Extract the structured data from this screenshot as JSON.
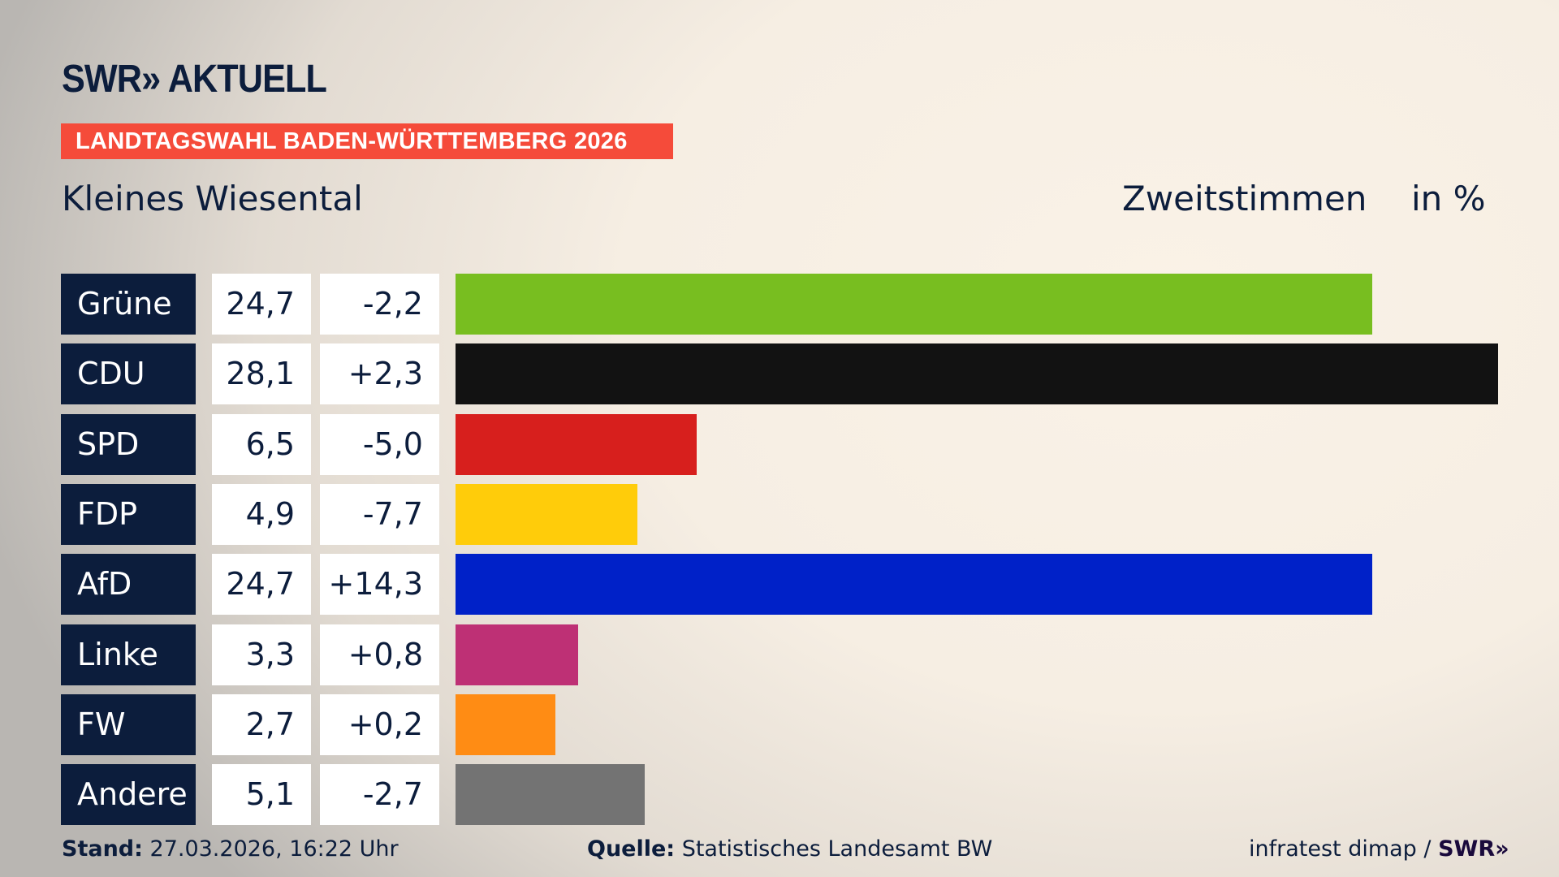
{
  "header": {
    "logo": "SWR» AKTUELL",
    "banner": "LANDTAGSWAHL BADEN-WÜRTTEMBERG 2026",
    "region": "Kleines Wiesental",
    "vote_type": "Zweitstimmen",
    "unit": "in %"
  },
  "chart_data": {
    "type": "bar",
    "orientation": "horizontal",
    "categories": [
      "Grüne",
      "CDU",
      "SPD",
      "FDP",
      "AfD",
      "Linke",
      "FW",
      "Andere"
    ],
    "values": [
      24.7,
      28.1,
      6.5,
      4.9,
      24.7,
      3.3,
      2.7,
      5.1
    ],
    "value_labels": [
      "24,7",
      "28,1",
      "6,5",
      "4,9",
      "24,7",
      "3,3",
      "2,7",
      "5,1"
    ],
    "changes": [
      -2.2,
      2.3,
      -5.0,
      -7.7,
      14.3,
      0.8,
      0.2,
      -2.7
    ],
    "change_labels": [
      "-2,2",
      "+2,3",
      "-5,0",
      "-7,7",
      "+14,3",
      "+0,8",
      "+0,2",
      "-2,7"
    ],
    "colors": [
      "#78be20",
      "#121212",
      "#d71f1d",
      "#ffcc0a",
      "#0021c8",
      "#be3075",
      "#ff8c14",
      "#737373"
    ],
    "title": "Zweitstimmen",
    "ylabel": "in %",
    "grid": false
  },
  "footer": {
    "stand_label": "Stand:",
    "stand_value": "27.03.2026, 16:22 Uhr",
    "quelle_label": "Quelle:",
    "quelle_value": "Statistisches Landesamt BW",
    "credit": "infratest dimap / ",
    "credit_brand": "SWR»"
  }
}
